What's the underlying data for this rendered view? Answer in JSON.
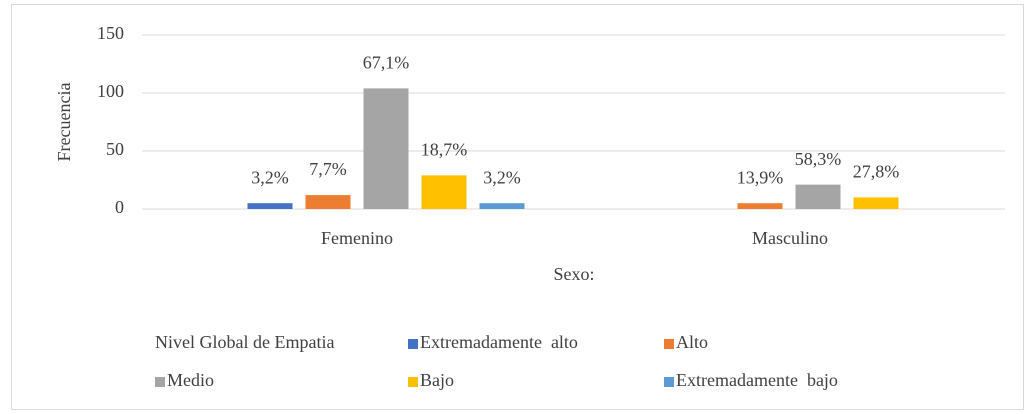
{
  "chart_data": {
    "type": "bar",
    "x_label": "Sexo:",
    "y_label": "Frecuencia",
    "legend_title": "Nivel Global de Empatia",
    "legend": "bottom",
    "grid": true,
    "categories": [
      "Femenino",
      "Masculino"
    ],
    "ylim": [
      0,
      150
    ],
    "yticks": [
      0,
      50,
      100,
      150
    ],
    "series": [
      {
        "name": "Extremadamente  alto",
        "color": "#4472c4",
        "values": [
          5,
          null
        ],
        "value_labels": [
          "3,2%",
          null
        ]
      },
      {
        "name": "Alto",
        "color": "#ed7d31",
        "values": [
          12,
          5
        ],
        "value_labels": [
          "7,7%",
          "13,9%"
        ]
      },
      {
        "name": "Medio",
        "color": "#a5a5a5",
        "values": [
          104,
          21
        ],
        "value_labels": [
          "67,1%",
          "58,3%"
        ]
      },
      {
        "name": "Bajo",
        "color": "#ffc000",
        "values": [
          29,
          10
        ],
        "value_labels": [
          "18,7%",
          "27,8%"
        ]
      },
      {
        "name": "Extremadamente  bajo",
        "color": "#5b9bd5",
        "values": [
          5,
          null
        ],
        "value_labels": [
          "3,2%",
          null
        ]
      }
    ]
  }
}
